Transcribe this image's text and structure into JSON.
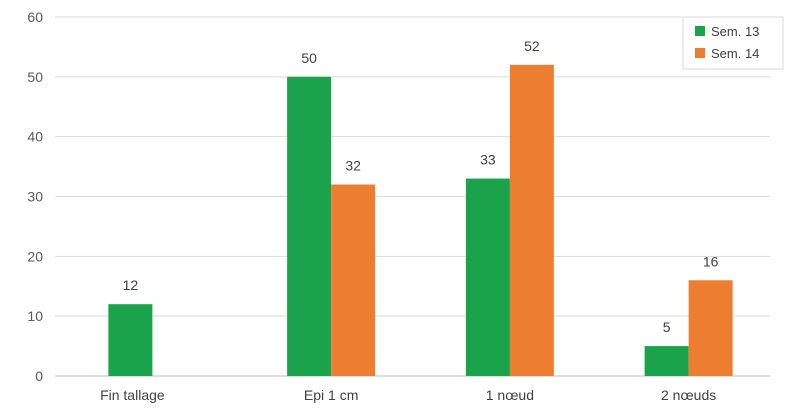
{
  "chart_data": {
    "type": "bar",
    "title": "",
    "xlabel": "",
    "ylabel": "",
    "categories": [
      "Fin tallage",
      "Epi 1 cm",
      "1 nœud",
      "2 nœuds"
    ],
    "series": [
      {
        "name": "Sem. 13",
        "color": "#1aa34a",
        "values": [
          12,
          50,
          33,
          5
        ]
      },
      {
        "name": "Sem. 14",
        "color": "#ed7d31",
        "values": [
          null,
          32,
          52,
          16
        ]
      }
    ],
    "data_labels": [
      [
        "12",
        "50",
        "33",
        "5"
      ],
      [
        null,
        "32",
        "52",
        "16"
      ]
    ],
    "ylim": [
      0,
      60
    ],
    "yticks": [
      0,
      10,
      20,
      30,
      40,
      50,
      60
    ],
    "grid": true,
    "legend_position": "top-right"
  }
}
